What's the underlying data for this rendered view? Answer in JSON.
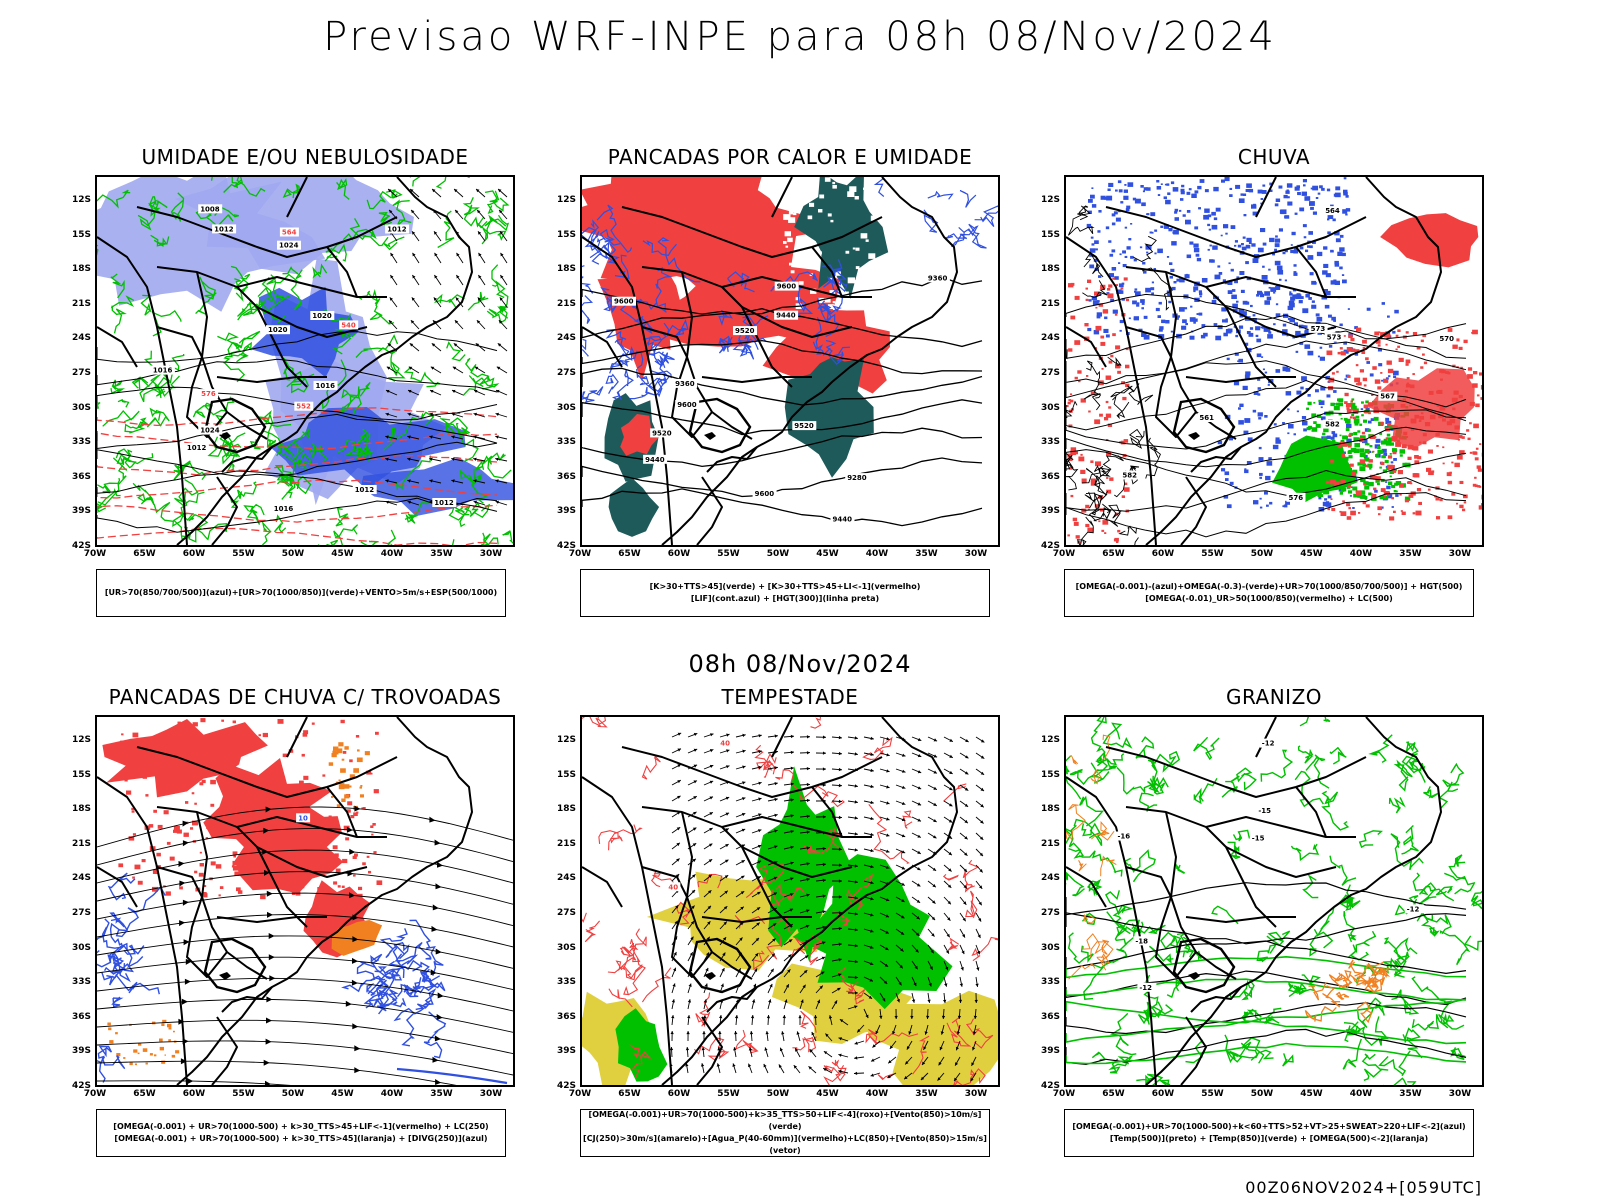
{
  "title": "Previsao WRF-INPE  para 08h 08/Nov/2024",
  "mid_date": "08h 08/Nov/2024",
  "footer": "00Z06NOV2024+[059UTC]",
  "lat_labels": [
    "12S",
    "15S",
    "18S",
    "21S",
    "24S",
    "27S",
    "30S",
    "33S",
    "36S",
    "39S",
    "42S"
  ],
  "lon_labels": [
    "70W",
    "65W",
    "60W",
    "55W",
    "50W",
    "45W",
    "40W",
    "35W",
    "30W"
  ],
  "colors": {
    "blue": "#3050e0",
    "lightblue": "#a0a8f0",
    "green": "#00c000",
    "red": "#f04040",
    "darkteal": "#1e5a5a",
    "orange": "#f08020",
    "yellow": "#e0d040",
    "black": "#000000"
  },
  "panels": [
    {
      "id": "umidade",
      "title": "UMIDADE E/OU NEBULOSIDADE",
      "legend": [
        "[UR>70(850/700/500)](azul)+[UR>70(1000/850)](verde)+VENTO>5m/s+ESP(500/1000)"
      ],
      "contour_labels": [
        "1012",
        "1012",
        "1016",
        "1016",
        "1012",
        "1008",
        "1016",
        "1020",
        "1024",
        "1020",
        "1024",
        "1012",
        "1012",
        "576",
        "564",
        "552",
        "540"
      ]
    },
    {
      "id": "pancadas-calor",
      "title": "PANCADAS POR CALOR E UMIDADE",
      "legend": [
        "[K>30+TTS>45](verde)  +  [K>30+TTS>45+LI<-1](vermelho)",
        "[LIF](cont.azul)  +  [HGT(300)](linha preta)"
      ],
      "contour_labels": [
        "9600",
        "9520",
        "9600",
        "9600",
        "9520",
        "9440",
        "9600",
        "9440",
        "9520",
        "9360",
        "9440",
        "9360",
        "9280"
      ]
    },
    {
      "id": "chuva",
      "title": "CHUVA",
      "legend": [
        "[OMEGA(-0.001)-(azul)+OMEGA(-0.3)-(verde)+UR>70(1000/850/700/500)]  +  HGT(500)",
        "[OMEGA(-0.01)_UR>50(1000/850)(vermelho)  +  LC(500)"
      ],
      "contour_labels": [
        "582",
        "582",
        "576",
        "573",
        "570",
        "567",
        "564",
        "561",
        "573"
      ]
    },
    {
      "id": "pancadas-trovoadas",
      "title": "PANCADAS DE CHUVA C/ TROVOADAS",
      "legend": [
        "[OMEGA(-0.001)  +  UR>70(1000-500)  +  k>30_TTS>45+LIF<-1](vermelho)  +  LC(250)",
        "[OMEGA(-0.001)  +  UR>70(1000-500)  +  k>30_TTS>45](laranja)  +  [DIVG(250)](azul)"
      ],
      "contour_labels": [
        "10"
      ]
    },
    {
      "id": "tempestade",
      "title": "TEMPESTADE",
      "legend": [
        "[OMEGA(-0.001)+UR>70(1000-500)+k>35_TTS>50+LIF<-4](roxo)+[Vento(850)>10m/s](verde)",
        "[CJ(250)>30m/s](amarelo)+[Agua_P(40-60mm)](vermelho)+LC(850)+[Vento(850)>15m/s](vetor)"
      ],
      "contour_labels": [
        "40",
        "40"
      ]
    },
    {
      "id": "granizo",
      "title": "GRANIZO",
      "legend": [
        "[OMEGA(-0.001)+UR>70(1000-500)+k<60+TTS>52+VT>25+SWEAT>220+LIF<-2](azul)",
        "[Temp(500)](preto)  +  [Temp(850)](verde)  +  [OMEGA(500)<-2](laranja)"
      ],
      "contour_labels": [
        "-15",
        "-12",
        "-12",
        "-15",
        "-18",
        "-16",
        "-12"
      ]
    }
  ]
}
